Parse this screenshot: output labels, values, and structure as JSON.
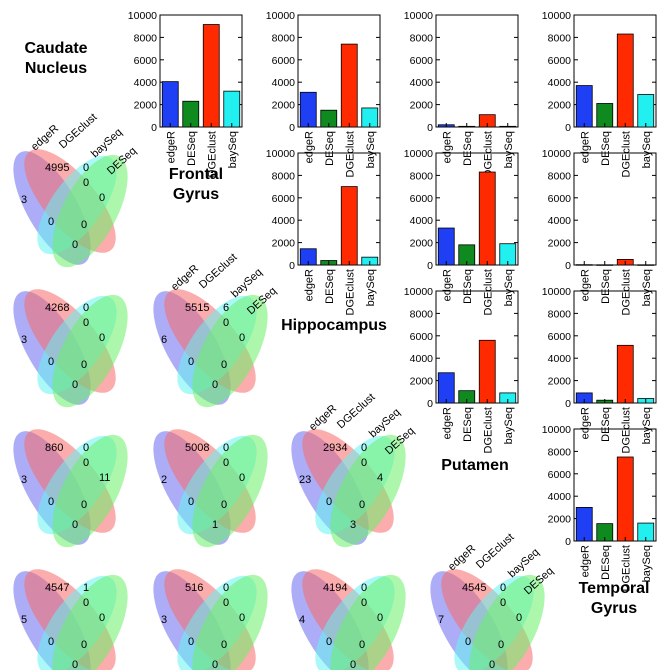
{
  "regions": [
    "Caudate\nNucleus",
    "Frontal\nGyrus",
    "Hippocampus",
    "Putamen",
    "Temporal\nGyrus"
  ],
  "colors": {
    "edgeR": "#1f3ff5",
    "DESeq": "#0f8a1e",
    "DGEclust": "#ff2a00",
    "baySeq": "#22f0f0",
    "venn_edgeR": "#6a6af0",
    "venn_DGEclust": "#f86a6a",
    "venn_baySeq": "#66f2f2",
    "venn_DESeq": "#6af06a"
  },
  "venn_labels": [
    "edgeR",
    "DGEclust",
    "baySeq",
    "DESeq"
  ],
  "chart_data": [
    {
      "type": "bar",
      "region_pair": [
        "Caudate Nucleus",
        "Frontal Gyrus"
      ],
      "categories": [
        "edgeR",
        "DESeq",
        "DGEclust",
        "baySeq"
      ],
      "values": [
        4050,
        2300,
        9150,
        3200
      ],
      "ylim": [
        0,
        10000
      ],
      "yticks": [
        "0",
        "2000",
        "4000",
        "6000",
        "8000",
        "10000"
      ]
    },
    {
      "type": "bar",
      "region_pair": [
        "Caudate Nucleus",
        "Hippocampus"
      ],
      "categories": [
        "edgeR",
        "DESeq",
        "DGEclust",
        "baySeq"
      ],
      "values": [
        3100,
        1500,
        7400,
        1700
      ],
      "ylim": [
        0,
        10000
      ],
      "yticks": [
        "0",
        "2000",
        "4000",
        "6000",
        "8000",
        "10000"
      ]
    },
    {
      "type": "bar",
      "region_pair": [
        "Caudate Nucleus",
        "Putamen"
      ],
      "categories": [
        "edgeR",
        "DESeq",
        "DGEclust",
        "baySeq"
      ],
      "values": [
        200,
        60,
        1100,
        60
      ],
      "ylim": [
        0,
        10000
      ],
      "yticks": [
        "0",
        "2000",
        "4000",
        "6000",
        "8000",
        "10000"
      ]
    },
    {
      "type": "bar",
      "region_pair": [
        "Caudate Nucleus",
        "Temporal Gyrus"
      ],
      "categories": [
        "edgeR",
        "DESeq",
        "DGEclust",
        "baySeq"
      ],
      "values": [
        3700,
        2100,
        8300,
        2900
      ],
      "ylim": [
        0,
        10000
      ],
      "yticks": [
        "0",
        "2000",
        "4000",
        "6000",
        "8000",
        "10000"
      ]
    },
    {
      "type": "bar",
      "region_pair": [
        "Frontal Gyrus",
        "Hippocampus"
      ],
      "categories": [
        "edgeR",
        "DESeq",
        "DGEclust",
        "baySeq"
      ],
      "values": [
        1450,
        400,
        7000,
        700
      ],
      "ylim": [
        0,
        10000
      ],
      "yticks": [
        "0",
        "2000",
        "4000",
        "6000",
        "8000",
        "10000"
      ]
    },
    {
      "type": "bar",
      "region_pair": [
        "Frontal Gyrus",
        "Putamen"
      ],
      "categories": [
        "edgeR",
        "DESeq",
        "DGEclust",
        "baySeq"
      ],
      "values": [
        3300,
        1800,
        8300,
        1900
      ],
      "ylim": [
        0,
        10000
      ],
      "yticks": [
        "0",
        "2000",
        "4000",
        "6000",
        "8000",
        "10000"
      ]
    },
    {
      "type": "bar",
      "region_pair": [
        "Frontal Gyrus",
        "Temporal Gyrus"
      ],
      "categories": [
        "edgeR",
        "DESeq",
        "DGEclust",
        "baySeq"
      ],
      "values": [
        30,
        20,
        500,
        20
      ],
      "ylim": [
        0,
        10000
      ],
      "yticks": [
        "0",
        "2000",
        "4000",
        "6000",
        "8000",
        "10000"
      ]
    },
    {
      "type": "bar",
      "region_pair": [
        "Hippocampus",
        "Putamen"
      ],
      "categories": [
        "edgeR",
        "DESeq",
        "DGEclust",
        "baySeq"
      ],
      "values": [
        2700,
        1100,
        5600,
        900
      ],
      "ylim": [
        0,
        10000
      ],
      "yticks": [
        "0",
        "2000",
        "4000",
        "6000",
        "8000",
        "10000"
      ]
    },
    {
      "type": "bar",
      "region_pair": [
        "Hippocampus",
        "Temporal Gyrus"
      ],
      "categories": [
        "edgeR",
        "DESeq",
        "DGEclust",
        "baySeq"
      ],
      "values": [
        900,
        250,
        5150,
        400
      ],
      "ylim": [
        0,
        10000
      ],
      "yticks": [
        "0",
        "2000",
        "4000",
        "6000",
        "8000",
        "10000"
      ]
    },
    {
      "type": "bar",
      "region_pair": [
        "Putamen",
        "Temporal Gyrus"
      ],
      "categories": [
        "edgeR",
        "DESeq",
        "DGEclust",
        "baySeq"
      ],
      "values": [
        3000,
        1550,
        7500,
        1600
      ],
      "ylim": [
        0,
        10000
      ],
      "yticks": [
        "0",
        "2000",
        "4000",
        "6000",
        "8000",
        "10000"
      ]
    }
  ],
  "venns": [
    {
      "region_pair": [
        "Caudate Nucleus",
        "Frontal Gyrus"
      ],
      "show_labels": true,
      "counts": {
        "edgeR_only": "3",
        "DGEclust_only": "4995",
        "baySeq_only": "0",
        "DESeq_only": "0",
        "inner_top": "0",
        "inner_right": "0",
        "inner_left": "0",
        "bottom": "0"
      }
    },
    {
      "region_pair": [
        "Caudate Nucleus",
        "Hippocampus"
      ],
      "show_labels": false,
      "counts": {
        "edgeR_only": "3",
        "DGEclust_only": "4268",
        "baySeq_only": "0",
        "DESeq_only": "0",
        "inner_top": "0",
        "inner_right": "0",
        "inner_left": "0",
        "bottom": "0"
      }
    },
    {
      "region_pair": [
        "Frontal Gyrus",
        "Hippocampus"
      ],
      "show_labels": true,
      "counts": {
        "edgeR_only": "6",
        "DGEclust_only": "5515",
        "baySeq_only": "6",
        "DESeq_only": "0",
        "inner_top": "0",
        "inner_right": "0",
        "inner_left": "0",
        "bottom": "0"
      }
    },
    {
      "region_pair": [
        "Caudate Nucleus",
        "Putamen"
      ],
      "show_labels": false,
      "counts": {
        "edgeR_only": "3",
        "DGEclust_only": "860",
        "baySeq_only": "0",
        "DESeq_only": "11",
        "inner_top": "0",
        "inner_right": "0",
        "inner_left": "0",
        "bottom": "0"
      }
    },
    {
      "region_pair": [
        "Frontal Gyrus",
        "Putamen"
      ],
      "show_labels": false,
      "counts": {
        "edgeR_only": "2",
        "DGEclust_only": "5008",
        "baySeq_only": "0",
        "DESeq_only": "0",
        "inner_top": "0",
        "inner_right": "0",
        "inner_left": "0",
        "bottom": "1"
      }
    },
    {
      "region_pair": [
        "Hippocampus",
        "Putamen"
      ],
      "show_labels": true,
      "counts": {
        "edgeR_only": "23",
        "DGEclust_only": "2934",
        "baySeq_only": "0",
        "DESeq_only": "4",
        "inner_top": "0",
        "inner_right": "0",
        "inner_left": "0",
        "bottom": "3"
      }
    },
    {
      "region_pair": [
        "Caudate Nucleus",
        "Temporal Gyrus"
      ],
      "show_labels": false,
      "counts": {
        "edgeR_only": "5",
        "DGEclust_only": "4547",
        "baySeq_only": "1",
        "DESeq_only": "0",
        "inner_top": "0",
        "inner_right": "0",
        "inner_left": "0",
        "bottom": "0"
      }
    },
    {
      "region_pair": [
        "Frontal Gyrus",
        "Temporal Gyrus"
      ],
      "show_labels": false,
      "counts": {
        "edgeR_only": "3",
        "DGEclust_only": "516",
        "baySeq_only": "0",
        "DESeq_only": "0",
        "inner_top": "0",
        "inner_right": "0",
        "inner_left": "0",
        "bottom": "0"
      }
    },
    {
      "region_pair": [
        "Hippocampus",
        "Temporal Gyrus"
      ],
      "show_labels": false,
      "counts": {
        "edgeR_only": "4",
        "DGEclust_only": "4194",
        "baySeq_only": "0",
        "DESeq_only": "0",
        "inner_top": "0",
        "inner_right": "0",
        "inner_left": "0",
        "bottom": "0"
      }
    },
    {
      "region_pair": [
        "Putamen",
        "Temporal Gyrus"
      ],
      "show_labels": true,
      "counts": {
        "edgeR_only": "7",
        "DGEclust_only": "4545",
        "baySeq_only": "0",
        "DESeq_only": "0",
        "inner_top": "0",
        "inner_right": "0",
        "inner_left": "0",
        "bottom": "0"
      }
    }
  ]
}
